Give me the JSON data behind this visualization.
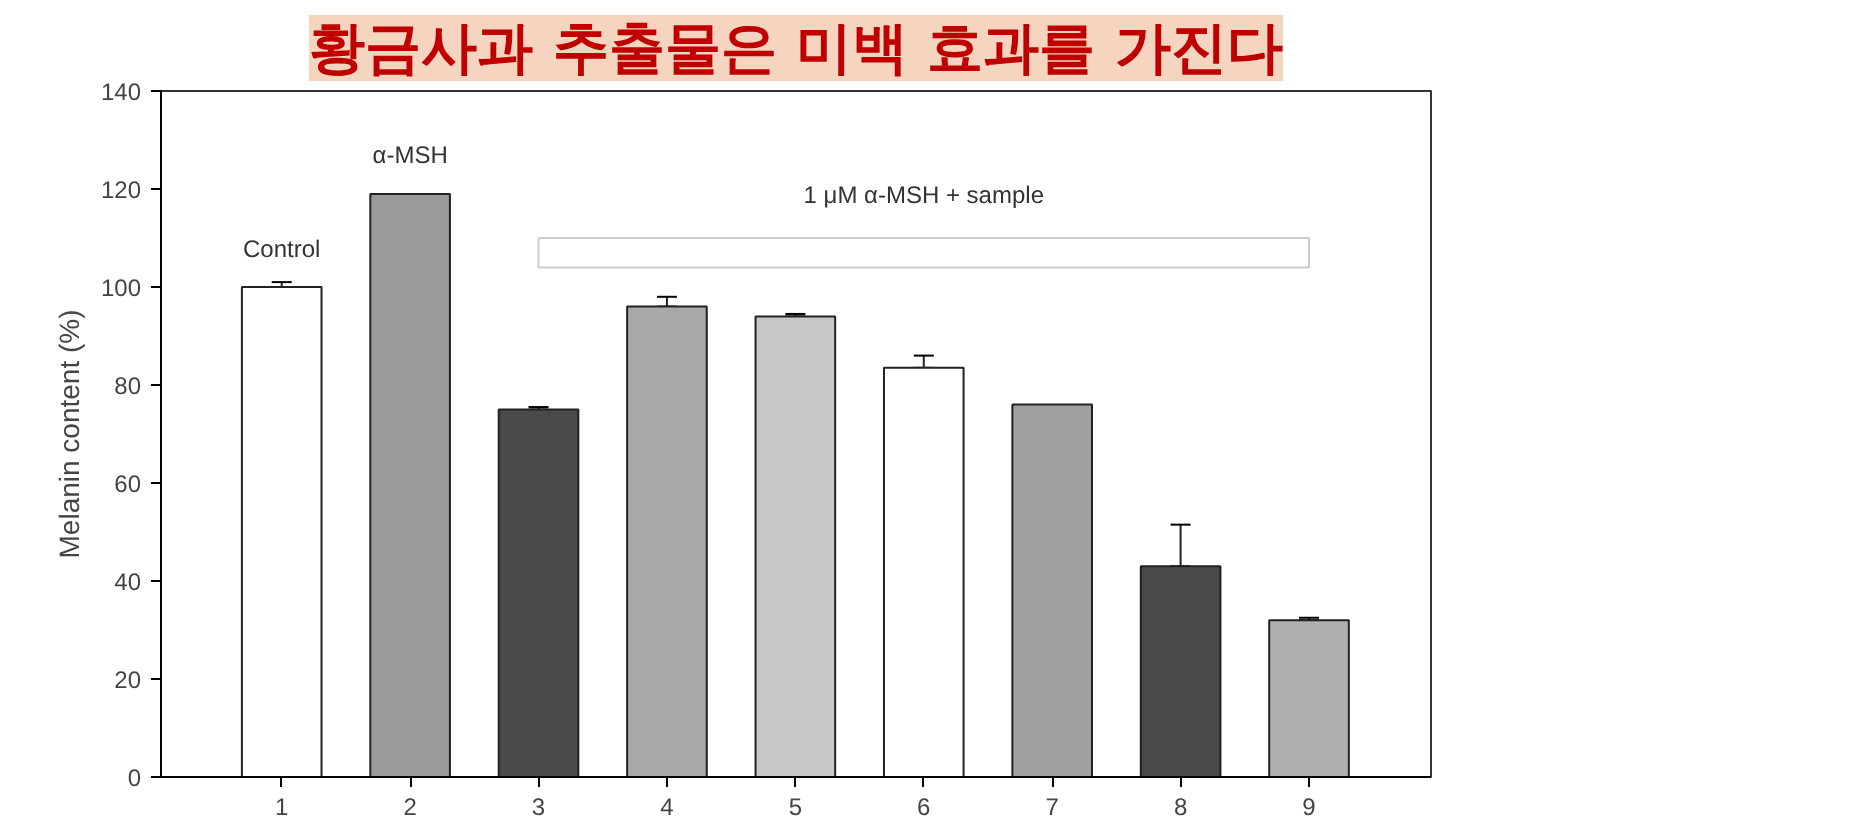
{
  "chart_data": {
    "type": "bar",
    "title": "황금사과 추출물은 미백 효과를 가진다",
    "ylabel": "Melanin content (%)",
    "categories": [
      "1",
      "2",
      "3",
      "4",
      "5",
      "6",
      "7",
      "8",
      "9"
    ],
    "values": [
      100,
      119,
      75,
      96,
      94,
      83.5,
      76,
      43,
      32
    ],
    "errors": [
      [
        100,
        101
      ],
      null,
      [
        75,
        75.5
      ],
      [
        96,
        98
      ],
      [
        94,
        94.5
      ],
      [
        83.5,
        86
      ],
      null,
      [
        43,
        51.5
      ],
      [
        32,
        32.5
      ]
    ],
    "colors": [
      "#ffffff",
      "#9a9a9a",
      "#4a4a4a",
      "#a8a8a8",
      "#c8c8c8",
      "#ffffff",
      "#a0a0a0",
      "#4a4a4a",
      "#b0b0b0"
    ],
    "ylim": [
      0,
      140
    ],
    "yticks": [
      0,
      20,
      40,
      60,
      80,
      100,
      120,
      140
    ],
    "grid": false,
    "annotations": [
      "Control",
      "α-MSH",
      "1 μM α-MSH + sample"
    ]
  }
}
